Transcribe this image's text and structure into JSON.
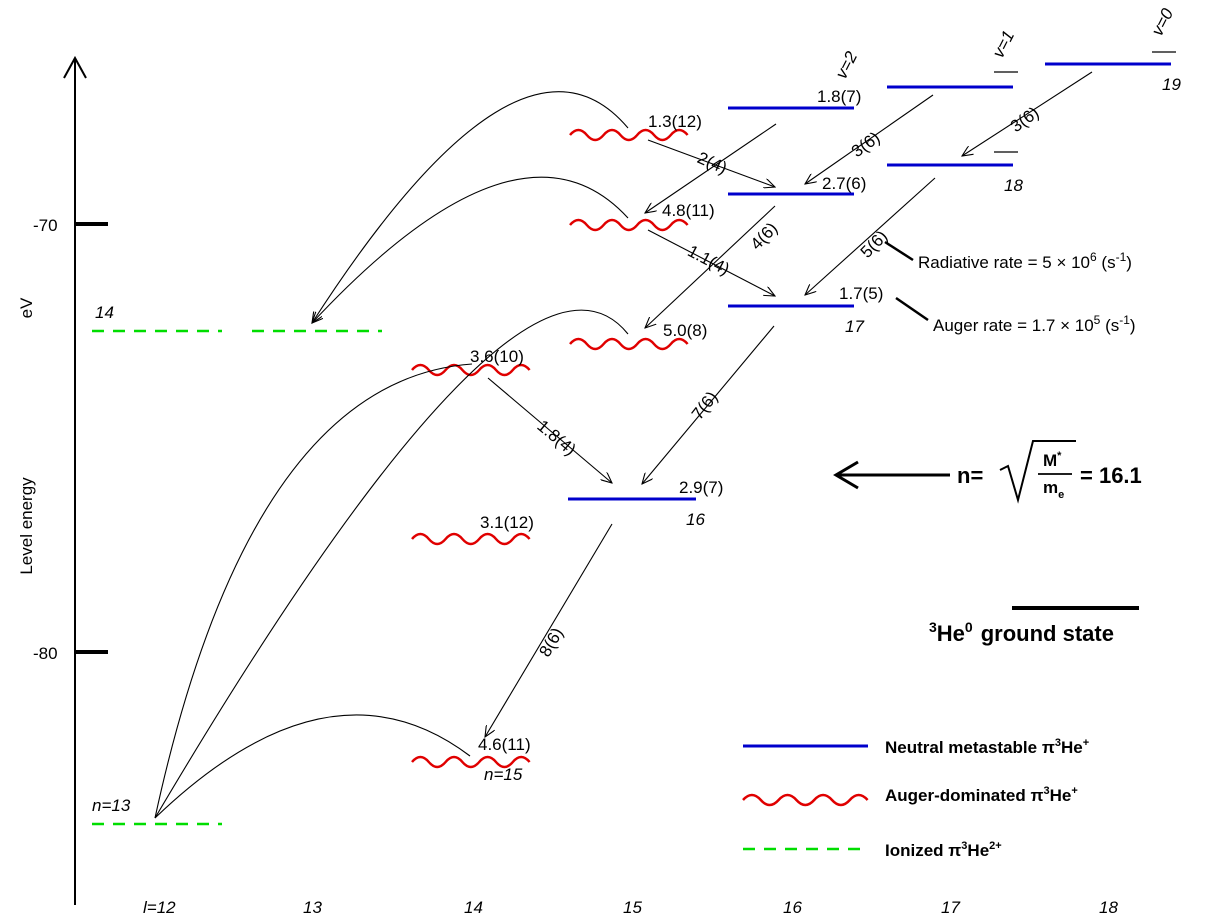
{
  "axis": {
    "y_label": "Level energy",
    "y_unit": "eV",
    "y_ticks": [
      "-70",
      "-80"
    ],
    "x_ticks": [
      "l=12",
      "13",
      "14",
      "15",
      "16",
      "17",
      "18"
    ]
  },
  "n_labels": {
    "n13": "n=13",
    "n14": "14",
    "n15": "n=15",
    "n16": "16",
    "n17": "17",
    "n18": "18",
    "n19": "19"
  },
  "v_labels": {
    "v2": "v=2",
    "v1": "v=1",
    "v0": "v=0"
  },
  "level_values": {
    "n15_l14": "4.6(11)",
    "n16_l14": "3.1(12)",
    "n17_l14": "3.6(10)",
    "n16_l15": "2.9(7)",
    "n17_l15": "5.0(8)",
    "n18_l15": "4.8(11)",
    "n19_l15": "1.3(12)",
    "n17_l16": "1.7(5)",
    "n18_l16": "2.7(6)",
    "n19_l16": "1.8(7)"
  },
  "transition_values": {
    "t1": "8(6)",
    "t2": "1.8(4)",
    "t3": "7(6)",
    "t4": "1.1(4)",
    "t5": "2(4)",
    "t6": "4(6)",
    "t7": "5(6)",
    "t8": "3(6)",
    "t9": "3(6)"
  },
  "annotations": {
    "radiative": "Radiative rate = 5 × 10",
    "radiative_exp": "6",
    "radiative_unit": " (s",
    "radiative_unit_exp": "-1",
    "radiative_close": ")",
    "auger": "Auger rate = 1.7 × 10",
    "auger_exp": "5",
    "auger_unit": " (s",
    "auger_unit_exp": "-1",
    "auger_close": ")"
  },
  "formula": {
    "lhs": "n=",
    "numerator": "M",
    "numerator_sup": "*",
    "denominator": "m",
    "denominator_sub": "e",
    "result": "= 16.1"
  },
  "ground_state": {
    "sup": "3",
    "label": "He",
    "label_sup": "0",
    "text": "ground state"
  },
  "legend": [
    {
      "label": "Neutral metastable π",
      "sup": "3",
      "tail": "He",
      "tail_sup": "+",
      "style": "solid",
      "color": "#0000cc"
    },
    {
      "label": "Auger-dominated π",
      "sup": "3",
      "tail": "He",
      "tail_sup": "+",
      "style": "wavy",
      "color": "#e00000"
    },
    {
      "label": "Ionized π",
      "sup": "3",
      "tail": "He",
      "tail_sup": "2+",
      "style": "dashed",
      "color": "#00dd00"
    }
  ],
  "colors": {
    "metastable": "#0000cc",
    "auger": "#e00000",
    "ionized": "#00dd00",
    "text": "#000000"
  }
}
